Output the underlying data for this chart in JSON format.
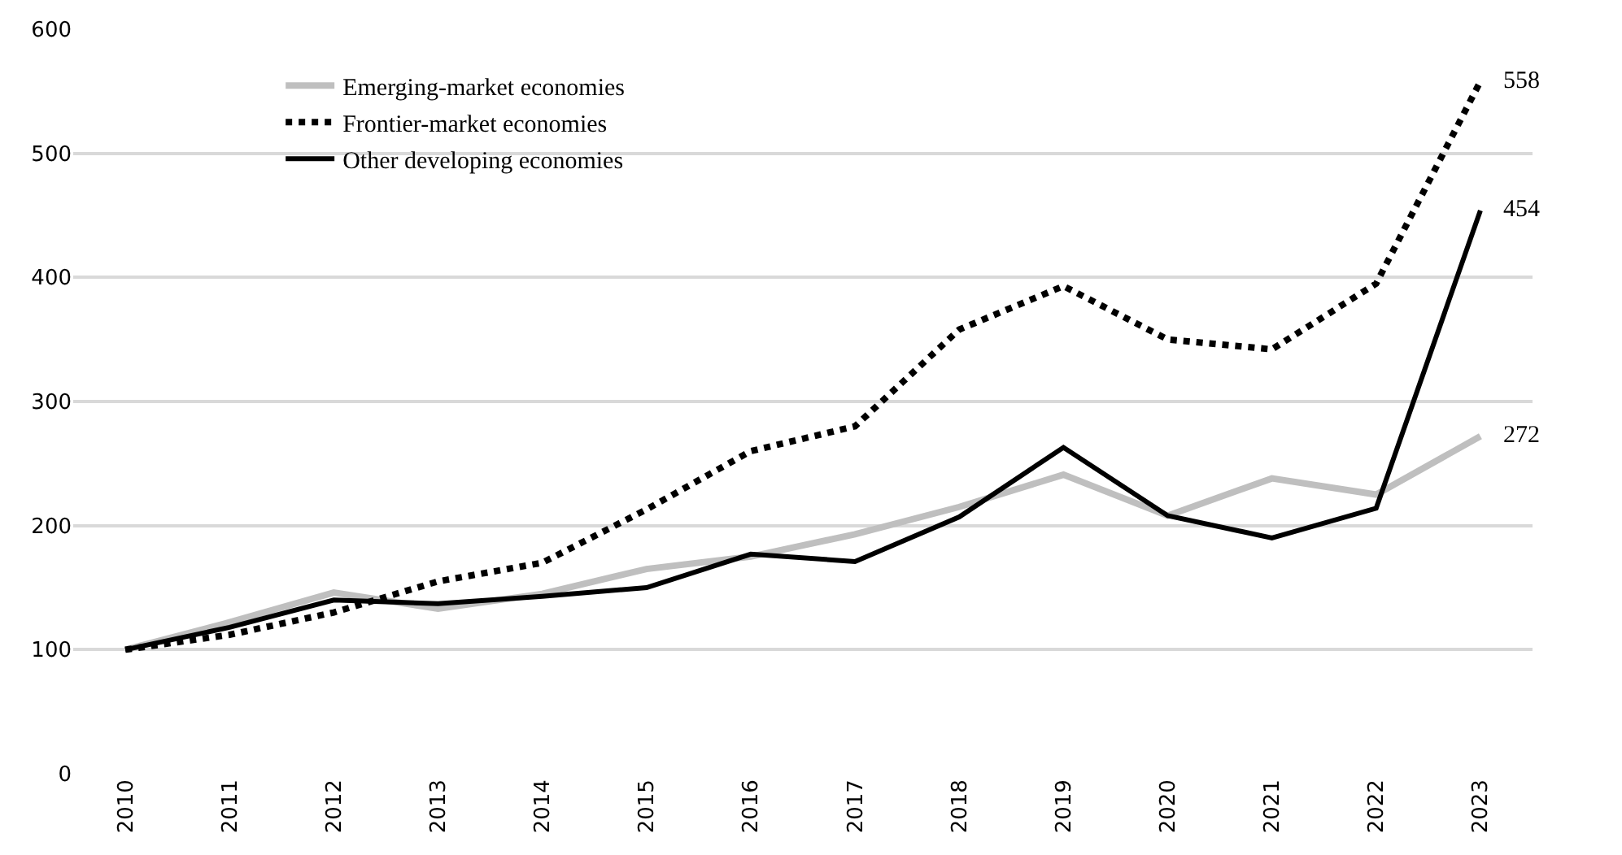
{
  "chart_data": {
    "type": "line",
    "categories": [
      "2010",
      "2011",
      "2012",
      "2013",
      "2014",
      "2015",
      "2016",
      "2017",
      "2018",
      "2019",
      "2020",
      "2021",
      "2022",
      "2023"
    ],
    "series": [
      {
        "name": "Emerging-market economies",
        "color": "#bfbfbf",
        "line_style": "solid",
        "values": [
          100,
          122,
          146,
          133,
          145,
          165,
          175,
          193,
          215,
          241,
          208,
          238,
          225,
          272
        ]
      },
      {
        "name": "Frontier-market economies",
        "color": "#000000",
        "line_style": "dotted",
        "values": [
          100,
          112,
          130,
          155,
          170,
          213,
          260,
          280,
          358,
          393,
          350,
          342,
          395,
          558
        ]
      },
      {
        "name": "Other developing economies",
        "color": "#000000",
        "line_style": "solid",
        "values": [
          100,
          118,
          140,
          137,
          143,
          150,
          177,
          171,
          207,
          263,
          208,
          190,
          214,
          454
        ]
      }
    ],
    "ylim": [
      0,
      600
    ],
    "yticks": [
      0,
      100,
      200,
      300,
      400,
      500,
      600
    ],
    "grid": "y",
    "legend": "top left",
    "marker": "none",
    "annotations": [
      {
        "text": "558",
        "x": "2023",
        "y": 558
      },
      {
        "text": "454",
        "x": "2023",
        "y": 454
      },
      {
        "text": "272",
        "x": "2023",
        "y": 272
      }
    ]
  }
}
